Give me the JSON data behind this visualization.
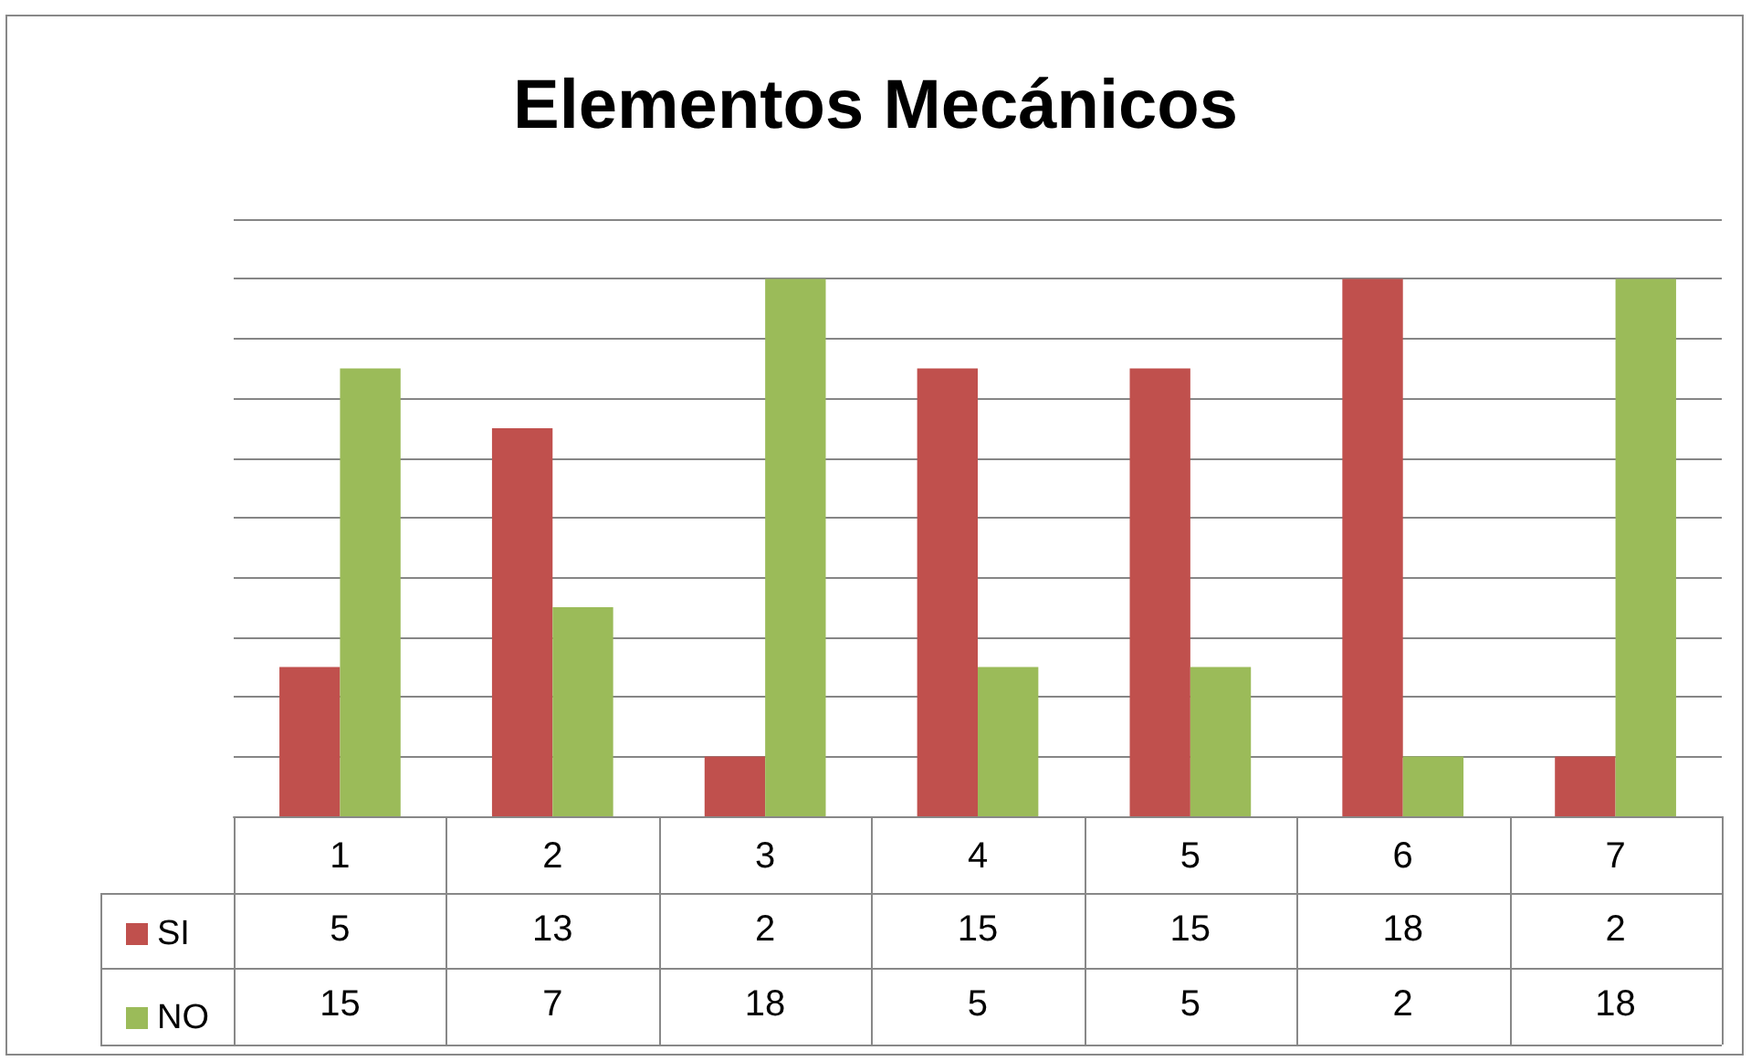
{
  "chart_data": {
    "type": "bar",
    "title": "Elementos Mecánicos",
    "categories": [
      "1",
      "2",
      "3",
      "4",
      "5",
      "6",
      "7"
    ],
    "series": [
      {
        "name": "SI",
        "color": "#c0504d",
        "values": [
          5,
          13,
          2,
          15,
          15,
          18,
          2
        ]
      },
      {
        "name": "NO",
        "color": "#9bbb59",
        "values": [
          15,
          7,
          18,
          5,
          5,
          2,
          18
        ]
      }
    ],
    "ylim": [
      0,
      20
    ],
    "yticks": [
      {
        "value": 0,
        "label": null
      },
      {
        "value": 2,
        "label": null
      },
      {
        "value": 4,
        "label": null
      },
      {
        "value": 6,
        "label": null
      },
      {
        "value": 8,
        "label": null
      },
      {
        "value": 10,
        "label": null
      },
      {
        "value": 12,
        "label": null
      },
      {
        "value": 14,
        "label": null
      },
      {
        "value": 16,
        "label": null
      },
      {
        "value": 18,
        "label": null
      },
      {
        "value": 20,
        "label": null
      }
    ],
    "grid": "y",
    "tick_labels": "x",
    "legend": "bottom left",
    "data_labels": true
  }
}
